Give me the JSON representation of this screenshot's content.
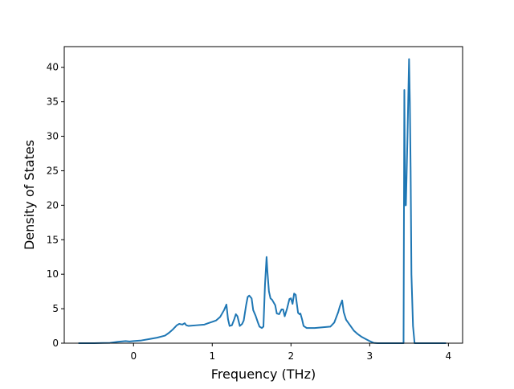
{
  "chart_data": {
    "type": "line",
    "title": "",
    "xlabel": "Frequency (THz)",
    "ylabel": "Density of States",
    "xlim": [
      -0.88,
      4.18
    ],
    "ylim": [
      0,
      43
    ],
    "xticks": [
      0,
      1,
      2,
      3,
      4
    ],
    "xtick_labels": [
      "0",
      "1",
      "2",
      "3",
      "4"
    ],
    "yticks": [
      0,
      5,
      10,
      15,
      20,
      25,
      30,
      35,
      40
    ],
    "ytick_labels": [
      "0",
      "5",
      "10",
      "15",
      "20",
      "25",
      "30",
      "35",
      "40"
    ],
    "grid": false,
    "legend": "none",
    "line_color": "#1f77b4",
    "series": [
      {
        "x": [
          -0.7,
          -0.5,
          -0.3,
          -0.2,
          -0.1,
          -0.05,
          0.0,
          0.1,
          0.2,
          0.3,
          0.4,
          0.45,
          0.5,
          0.55,
          0.58,
          0.62,
          0.65,
          0.67,
          0.7,
          0.8,
          0.9,
          0.95,
          1.0,
          1.05,
          1.1,
          1.15,
          1.18,
          1.2,
          1.22,
          1.25,
          1.28,
          1.3,
          1.32,
          1.35,
          1.38,
          1.4,
          1.43,
          1.45,
          1.47,
          1.5,
          1.52,
          1.55,
          1.58,
          1.6,
          1.63,
          1.65,
          1.67,
          1.69,
          1.7,
          1.72,
          1.74,
          1.76,
          1.8,
          1.82,
          1.85,
          1.88,
          1.9,
          1.92,
          1.95,
          1.98,
          2.0,
          2.02,
          2.04,
          2.06,
          2.07,
          2.09,
          2.11,
          2.12,
          2.14,
          2.16,
          2.2,
          2.25,
          2.3,
          2.4,
          2.5,
          2.55,
          2.6,
          2.62,
          2.65,
          2.67,
          2.7,
          2.75,
          2.8,
          2.85,
          2.9,
          2.95,
          3.0,
          3.05,
          3.1,
          3.2,
          3.3,
          3.4,
          3.43,
          3.44,
          3.45,
          3.46,
          3.48,
          3.5,
          3.51,
          3.52,
          3.53,
          3.55,
          3.57,
          3.6,
          3.7,
          3.8,
          3.9,
          3.97
        ],
        "y": [
          0,
          0,
          0.05,
          0.2,
          0.3,
          0.25,
          0.3,
          0.4,
          0.6,
          0.8,
          1.1,
          1.5,
          2.0,
          2.6,
          2.8,
          2.7,
          2.9,
          2.6,
          2.5,
          2.6,
          2.7,
          2.9,
          3.1,
          3.3,
          3.8,
          4.8,
          5.6,
          3.5,
          2.5,
          2.6,
          3.5,
          4.2,
          3.9,
          2.5,
          2.8,
          3.3,
          5.5,
          6.7,
          6.9,
          6.5,
          4.8,
          4.0,
          3.0,
          2.4,
          2.2,
          2.4,
          8.5,
          12.5,
          10.5,
          7.5,
          6.5,
          6.3,
          5.5,
          4.3,
          4.2,
          4.9,
          4.9,
          3.9,
          5.0,
          6.4,
          6.5,
          5.7,
          7.2,
          7.0,
          6.1,
          4.4,
          4.2,
          4.3,
          3.5,
          2.5,
          2.2,
          2.2,
          2.2,
          2.3,
          2.4,
          3.0,
          4.5,
          5.3,
          6.2,
          4.5,
          3.4,
          2.6,
          1.8,
          1.3,
          0.9,
          0.6,
          0.3,
          0.05,
          0,
          0,
          0,
          0,
          0,
          36.7,
          20,
          20,
          30,
          41.2,
          35,
          25,
          10,
          2.5,
          0,
          0,
          0,
          0,
          0,
          0
        ]
      }
    ]
  }
}
